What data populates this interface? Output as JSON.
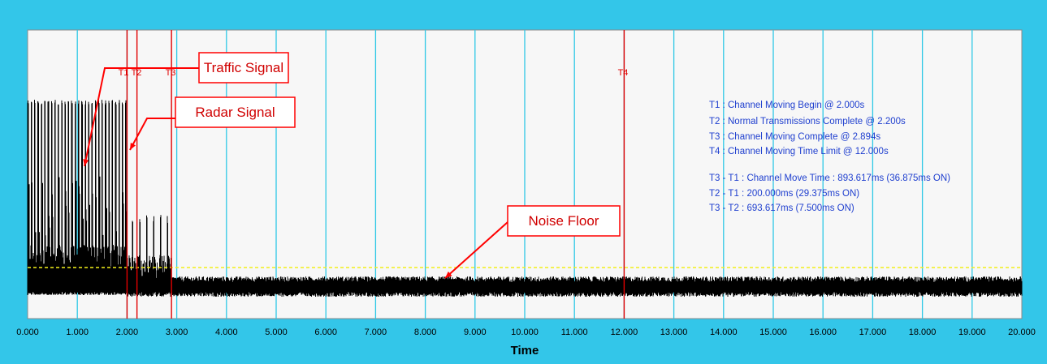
{
  "chart_data": {
    "type": "line",
    "title": "",
    "xlabel": "Time",
    "ylabel": "",
    "xlim": [
      0,
      20
    ],
    "x_ticks": [
      "0.000",
      "1.000",
      "2.000",
      "3.000",
      "4.000",
      "5.000",
      "6.000",
      "7.000",
      "8.000",
      "9.000",
      "10.000",
      "11.000",
      "12.000",
      "13.000",
      "14.000",
      "15.000",
      "16.000",
      "17.000",
      "18.000",
      "19.000",
      "20.000"
    ],
    "grid": true,
    "threshold_line": "dashed yellow horizontal line above the noise floor",
    "markers": [
      {
        "label": "T1",
        "x": 2.0
      },
      {
        "label": "T2",
        "x": 2.2
      },
      {
        "label": "T3",
        "x": 2.894
      },
      {
        "label": "T4",
        "x": 12.0
      }
    ],
    "info_lines": [
      "T1 : Channel Moving Begin @ 2.000s",
      "T2 : Normal Transmissions Complete @ 2.200s",
      "T3 : Channel Moving Complete @ 2.894s",
      "T4 : Channel Moving Time Limit @ 12.000s",
      "",
      "T3 - T1 : Channel Move Time : 893.617ms (36.875ms ON)",
      "T2 - T1 : 200.000ms (29.375ms ON)",
      "T3 - T2 : 693.617ms (7.500ms ON)"
    ],
    "annotations": [
      {
        "label": "Traffic Signal",
        "target_x": 1.15
      },
      {
        "label": "Radar Signal",
        "target_x": 2.05
      },
      {
        "label": "Noise Floor",
        "target_x": 8.4
      }
    ],
    "series": [
      {
        "segments": [
          {
            "from": 0.0,
            "to": 2.0,
            "content": "traffic bursts"
          },
          {
            "from": 2.0,
            "to": 2.894,
            "content": "radar pulses"
          },
          {
            "from": 2.894,
            "to": 20.0,
            "content": "noise floor"
          }
        ]
      }
    ]
  },
  "colors": {
    "frame": "#33c6e9",
    "plot_bg": "#f7f7f7",
    "grid": "#2ec8e6",
    "marker": "#e00000",
    "info_text": "#1f3fcf",
    "threshold": "#f2ef1a",
    "signal": "#000000"
  }
}
